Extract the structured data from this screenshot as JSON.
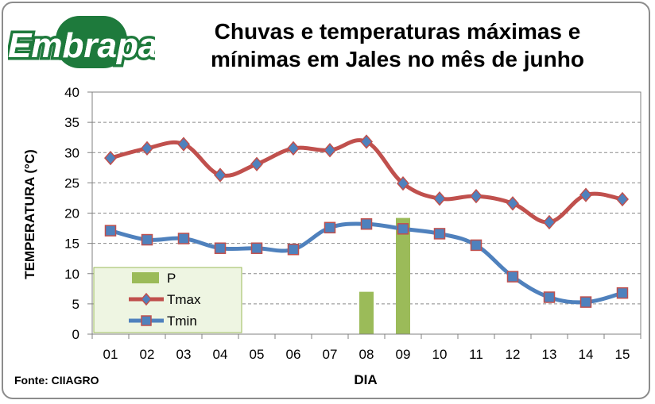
{
  "logo": {
    "text": "Embrapa",
    "color": "#1e7a3c",
    "accent": "#1aa0d8"
  },
  "title": "Chuvas e temperaturas máximas e mínimas em Jales no mês de junho",
  "source": "Fonte: CIIAGRO",
  "chart_data": {
    "type": "line",
    "categories": [
      "01",
      "02",
      "03",
      "04",
      "05",
      "06",
      "07",
      "08",
      "09",
      "10",
      "11",
      "12",
      "13",
      "14",
      "15"
    ],
    "xlabel": "DIA",
    "ylabel": "TEMPERATURA (°C)",
    "ylim": [
      0,
      40
    ],
    "yticks": [
      0,
      5,
      10,
      15,
      20,
      25,
      30,
      35,
      40
    ],
    "grid": true,
    "legend_position": "bottom-left",
    "series": [
      {
        "name": "P",
        "kind": "bar",
        "color": "#9bbb59",
        "values": [
          0,
          0,
          0,
          0,
          0,
          0,
          0,
          7,
          19.2,
          0,
          0,
          0,
          0,
          0,
          0
        ]
      },
      {
        "name": "Tmax",
        "kind": "line",
        "color": "#c0504d",
        "marker": "diamond",
        "marker_color": "#4f81bd",
        "values": [
          29.1,
          30.7,
          31.4,
          26.3,
          28.1,
          30.7,
          30.4,
          31.8,
          24.9,
          22.4,
          22.8,
          21.6,
          18.5,
          23.0,
          22.3
        ]
      },
      {
        "name": "Tmin",
        "kind": "line",
        "color": "#4f81bd",
        "marker": "square",
        "marker_color": "#4f81bd",
        "values": [
          17.1,
          15.6,
          15.8,
          14.2,
          14.2,
          14.0,
          17.6,
          18.2,
          17.4,
          16.6,
          14.7,
          9.5,
          6.1,
          5.3,
          6.8
        ]
      }
    ]
  }
}
